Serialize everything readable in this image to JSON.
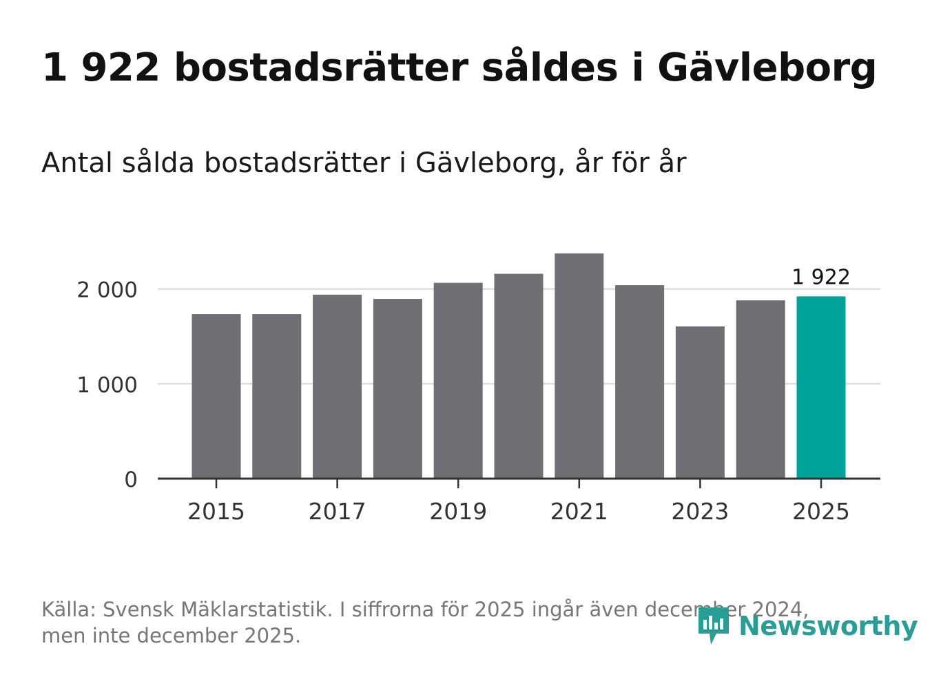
{
  "title": "1 922 bostadsrätter såldes i Gävleborg",
  "subtitle": "Antal sålda bostadsrätter i Gävleborg, år för år",
  "footer": {
    "source_line1": "Källa: Svensk Mäklarstatistik. I siffrorna för 2025 ingår även december 2024,",
    "source_line2": "men inte december 2025."
  },
  "logo": {
    "text": "Newsworthy",
    "icon": "newsworthy-logo-icon"
  },
  "colors": {
    "bar": "#6f6e74",
    "highlight": "#00a398",
    "grid": "#dddddd",
    "axis": "#333333",
    "logo": "#2a9d96"
  },
  "chart_data": {
    "type": "bar",
    "categories": [
      "2015",
      "2016",
      "2017",
      "2018",
      "2019",
      "2020",
      "2021",
      "2022",
      "2023",
      "2024",
      "2025"
    ],
    "values": [
      1735,
      1735,
      1940,
      1895,
      2065,
      2160,
      2375,
      2040,
      1605,
      1880,
      1922
    ],
    "highlight_index": 10,
    "tick_labels_x": [
      "2015",
      "2017",
      "2019",
      "2021",
      "2023",
      "2025"
    ],
    "y_ticks": [
      0,
      1000,
      2000
    ],
    "y_tick_labels": [
      "0",
      "1 000",
      "2 000"
    ],
    "ylim": [
      0,
      2450
    ],
    "annotation": {
      "category": "2025",
      "label": "1 922"
    },
    "xlabel": "",
    "ylabel": ""
  }
}
